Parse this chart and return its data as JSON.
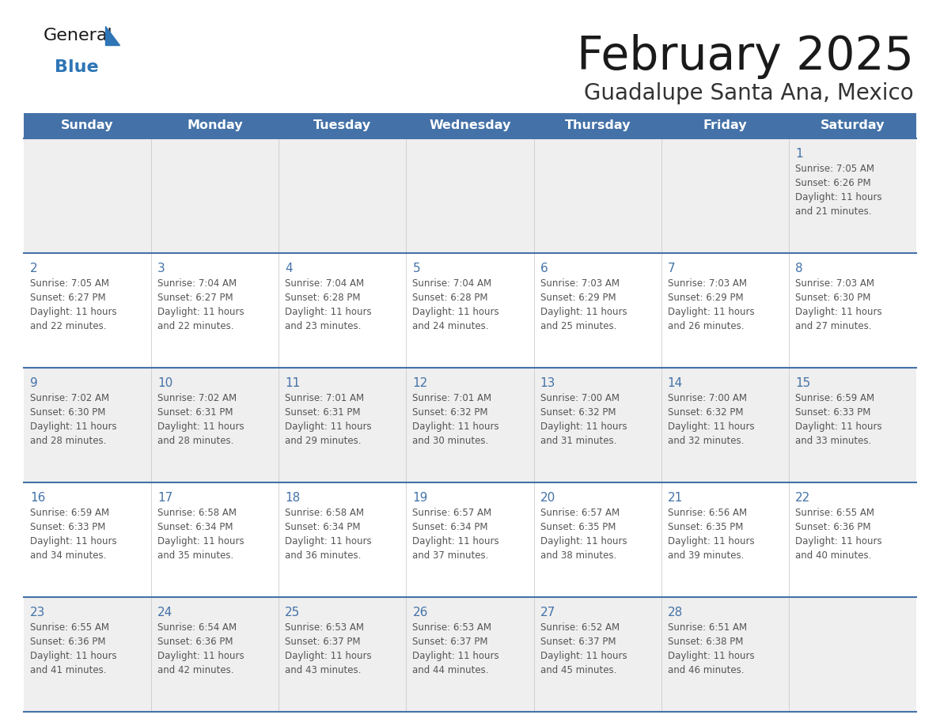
{
  "title": "February 2025",
  "subtitle": "Guadalupe Santa Ana, Mexico",
  "days_of_week": [
    "Sunday",
    "Monday",
    "Tuesday",
    "Wednesday",
    "Thursday",
    "Friday",
    "Saturday"
  ],
  "header_bg": "#4472A8",
  "header_text": "#FFFFFF",
  "row_bg_light": "#EFEFEF",
  "row_bg_white": "#FFFFFF",
  "day_number_color": "#4472A8",
  "text_color": "#555555",
  "border_color": "#4472A8",
  "title_color": "#1a1a1a",
  "subtitle_color": "#333333",
  "logo_general_color": "#1a1a1a",
  "logo_blue_color": "#2E75B6",
  "logo_triangle_color": "#2E75B6",
  "calendar": [
    [
      null,
      null,
      null,
      null,
      null,
      null,
      1
    ],
    [
      2,
      3,
      4,
      5,
      6,
      7,
      8
    ],
    [
      9,
      10,
      11,
      12,
      13,
      14,
      15
    ],
    [
      16,
      17,
      18,
      19,
      20,
      21,
      22
    ],
    [
      23,
      24,
      25,
      26,
      27,
      28,
      null
    ]
  ],
  "sunrise": {
    "1": "7:05 AM",
    "2": "7:05 AM",
    "3": "7:04 AM",
    "4": "7:04 AM",
    "5": "7:04 AM",
    "6": "7:03 AM",
    "7": "7:03 AM",
    "8": "7:03 AM",
    "9": "7:02 AM",
    "10": "7:02 AM",
    "11": "7:01 AM",
    "12": "7:01 AM",
    "13": "7:00 AM",
    "14": "7:00 AM",
    "15": "6:59 AM",
    "16": "6:59 AM",
    "17": "6:58 AM",
    "18": "6:58 AM",
    "19": "6:57 AM",
    "20": "6:57 AM",
    "21": "6:56 AM",
    "22": "6:55 AM",
    "23": "6:55 AM",
    "24": "6:54 AM",
    "25": "6:53 AM",
    "26": "6:53 AM",
    "27": "6:52 AM",
    "28": "6:51 AM"
  },
  "sunset": {
    "1": "6:26 PM",
    "2": "6:27 PM",
    "3": "6:27 PM",
    "4": "6:28 PM",
    "5": "6:28 PM",
    "6": "6:29 PM",
    "7": "6:29 PM",
    "8": "6:30 PM",
    "9": "6:30 PM",
    "10": "6:31 PM",
    "11": "6:31 PM",
    "12": "6:32 PM",
    "13": "6:32 PM",
    "14": "6:32 PM",
    "15": "6:33 PM",
    "16": "6:33 PM",
    "17": "6:34 PM",
    "18": "6:34 PM",
    "19": "6:34 PM",
    "20": "6:35 PM",
    "21": "6:35 PM",
    "22": "6:36 PM",
    "23": "6:36 PM",
    "24": "6:36 PM",
    "25": "6:37 PM",
    "26": "6:37 PM",
    "27": "6:37 PM",
    "28": "6:38 PM"
  },
  "daylight_minutes": {
    "1": 21,
    "2": 22,
    "3": 22,
    "4": 23,
    "5": 24,
    "6": 25,
    "7": 26,
    "8": 27,
    "9": 28,
    "10": 28,
    "11": 29,
    "12": 30,
    "13": 31,
    "14": 32,
    "15": 33,
    "16": 34,
    "17": 35,
    "18": 36,
    "19": 37,
    "20": 38,
    "21": 39,
    "22": 40,
    "23": 41,
    "24": 42,
    "25": 43,
    "26": 44,
    "27": 45,
    "28": 46
  }
}
